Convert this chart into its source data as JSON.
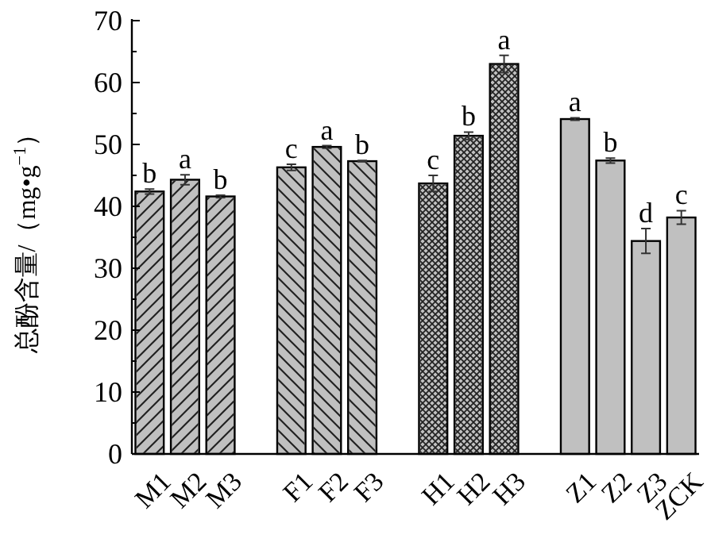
{
  "chart_data": {
    "type": "bar",
    "ylabel": "总酚含量/（mg•g$^{−1}$）",
    "categories": [
      "M1",
      "M2",
      "M3",
      null,
      "F1",
      "F2",
      "F3",
      null,
      "H1",
      "H2",
      "H3",
      null,
      "Z1",
      "Z2",
      "Z3",
      "ZCK"
    ],
    "series": [
      {
        "color": "#c0c0c0",
        "values": [
          42.4,
          44.3,
          41.6,
          null,
          null,
          null,
          null,
          null,
          null,
          null,
          null,
          null,
          null,
          null,
          null,
          null
        ],
        "errors": [
          0.4,
          0.8,
          0.2,
          null,
          null,
          null,
          null,
          null,
          null,
          null,
          null,
          null,
          null,
          null,
          null,
          null
        ]
      },
      {
        "color": "#c0c0c0",
        "values": [
          null,
          null,
          null,
          null,
          46.3,
          49.6,
          47.3,
          null,
          null,
          null,
          null,
          null,
          null,
          null,
          null,
          null
        ],
        "errors": [
          null,
          null,
          null,
          null,
          0.5,
          0.2,
          0.1,
          null,
          null,
          null,
          null,
          null,
          null,
          null,
          null,
          null
        ]
      },
      {
        "color": "#c0c0c0",
        "values": [
          null,
          null,
          null,
          null,
          null,
          null,
          null,
          null,
          43.7,
          51.4,
          63.0,
          null,
          null,
          null,
          null,
          null
        ],
        "errors": [
          null,
          null,
          null,
          null,
          null,
          null,
          null,
          null,
          1.3,
          0.6,
          1.4,
          null,
          null,
          null,
          null,
          null
        ]
      },
      {
        "color": "#c0c0c0",
        "values": [
          null,
          null,
          null,
          null,
          null,
          null,
          null,
          null,
          null,
          null,
          null,
          null,
          54.1,
          47.4,
          34.4,
          38.2
        ],
        "errors": [
          null,
          null,
          null,
          null,
          null,
          null,
          null,
          null,
          null,
          null,
          null,
          null,
          0.2,
          0.4,
          2.0,
          1.1
        ]
      }
    ],
    "ylim": [
      0,
      70
    ],
    "yticks": [
      0,
      {
        "value": 5,
        "label": null
      },
      10,
      {
        "value": 15,
        "label": null
      },
      20,
      {
        "value": 25,
        "label": null
      },
      30,
      {
        "value": 35,
        "label": null
      },
      40,
      {
        "value": 45,
        "label": null
      },
      50,
      {
        "value": 55,
        "label": null
      },
      60,
      {
        "value": 65,
        "label": null
      },
      70
    ],
    "annotations": [
      {
        "text": "b",
        "x": "M1",
        "y": 42.8
      },
      {
        "text": "a",
        "x": "M2",
        "y": 45.1
      },
      {
        "text": "b",
        "x": "M3",
        "y": 41.8
      },
      {
        "text": "c",
        "x": "F1",
        "y": 46.8
      },
      {
        "text": "a",
        "x": "F2",
        "y": 49.8
      },
      {
        "text": "b",
        "x": "F3",
        "y": 47.4
      },
      {
        "text": "c",
        "x": "H1",
        "y": 45.0
      },
      {
        "text": "b",
        "x": "H2",
        "y": 52.0
      },
      {
        "text": "a",
        "x": "H3",
        "y": 64.4
      },
      {
        "text": "a",
        "x": "Z1",
        "y": 54.3
      },
      {
        "text": "b",
        "x": "Z2",
        "y": 47.8
      },
      {
        "text": "d",
        "x": "Z3",
        "y": 36.4
      },
      {
        "text": "c",
        "x": "ZCK",
        "y": 39.3
      }
    ],
    "grid": false
  }
}
